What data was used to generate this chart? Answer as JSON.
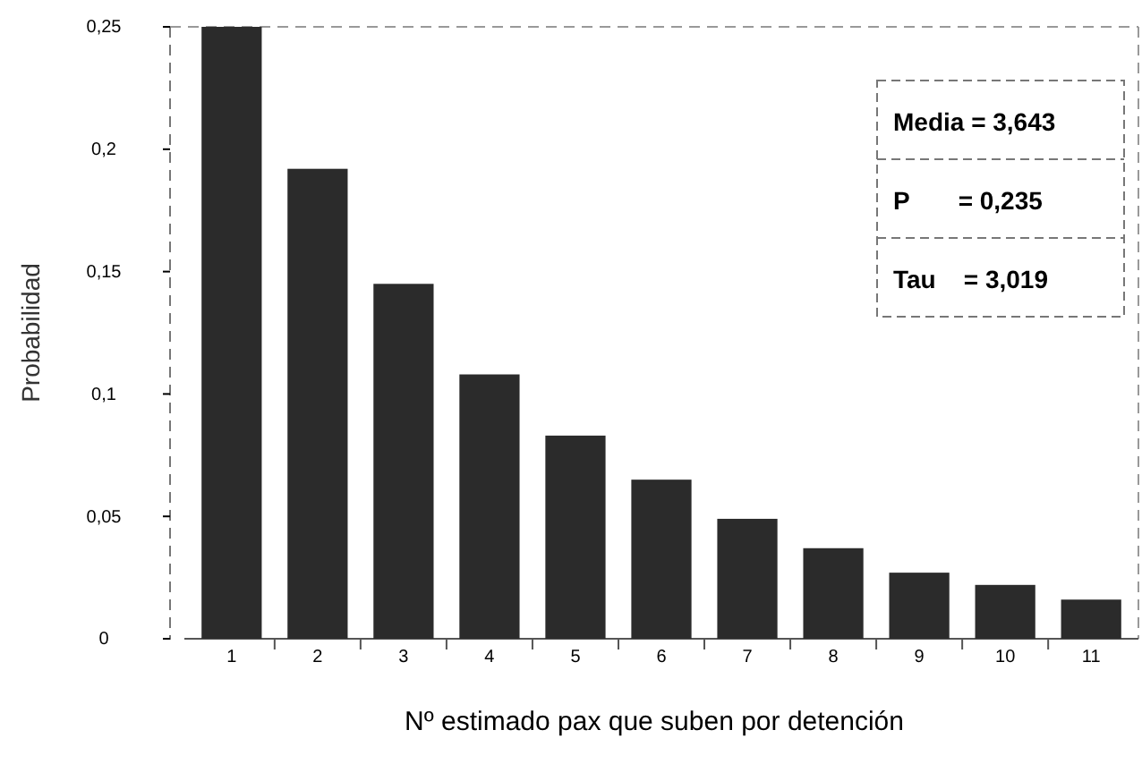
{
  "chart_data": {
    "type": "bar",
    "xlabel": "Nº estimado pax que suben por detención",
    "ylabel": "Probabilidad",
    "categories": [
      "1",
      "2",
      "3",
      "4",
      "5",
      "6",
      "7",
      "8",
      "9",
      "10",
      "11"
    ],
    "values": [
      0.25,
      0.192,
      0.145,
      0.108,
      0.083,
      0.065,
      0.049,
      0.037,
      0.027,
      0.022,
      0.016
    ],
    "color": "#2b2b2b",
    "ylim": [
      0,
      0.25
    ],
    "yticks": [
      {
        "value": 0,
        "label": "0"
      },
      {
        "value": 0.05,
        "label": "0,05"
      },
      {
        "value": 0.1,
        "label": "0,1"
      },
      {
        "value": 0.15,
        "label": "0,15"
      },
      {
        "value": 0.2,
        "label": "0,2"
      },
      {
        "value": 0.25,
        "label": "0,25"
      }
    ],
    "annotations": [
      "Media = 3,643",
      "P       = 0,235",
      "Tau    = 3,019"
    ]
  }
}
